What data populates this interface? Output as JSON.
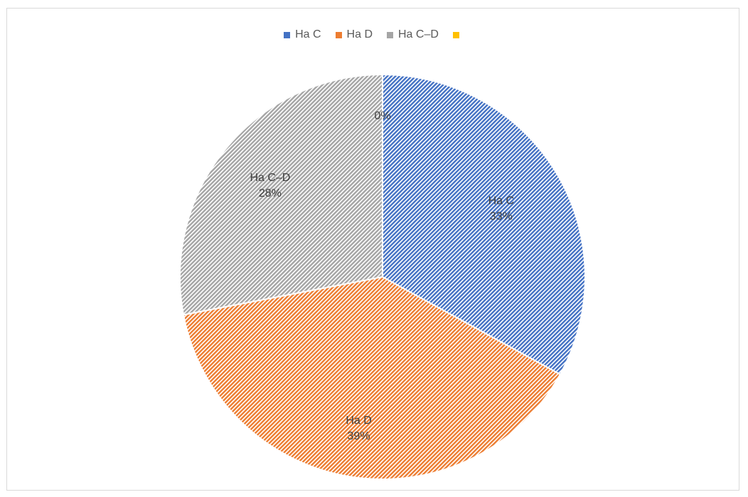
{
  "chart_data": {
    "type": "pie",
    "title": "",
    "categories": [
      "Ha C",
      "Ha D",
      "Ha C–D",
      ""
    ],
    "values": [
      33,
      39,
      28,
      0
    ],
    "value_unit": "%",
    "colors": [
      "#4472c4",
      "#ed7d31",
      "#a5a5a5",
      "#ffc000"
    ],
    "fill_style": "diagonal-hatch",
    "legend_position": "top",
    "start_angle_deg": 0,
    "direction": "clockwise",
    "data_labels": [
      {
        "category": "Ha C",
        "value": "33%"
      },
      {
        "category": "Ha D",
        "value": "39%"
      },
      {
        "category": "Ha C–D",
        "value": "28%"
      },
      {
        "category": "",
        "value": "0%"
      }
    ]
  }
}
